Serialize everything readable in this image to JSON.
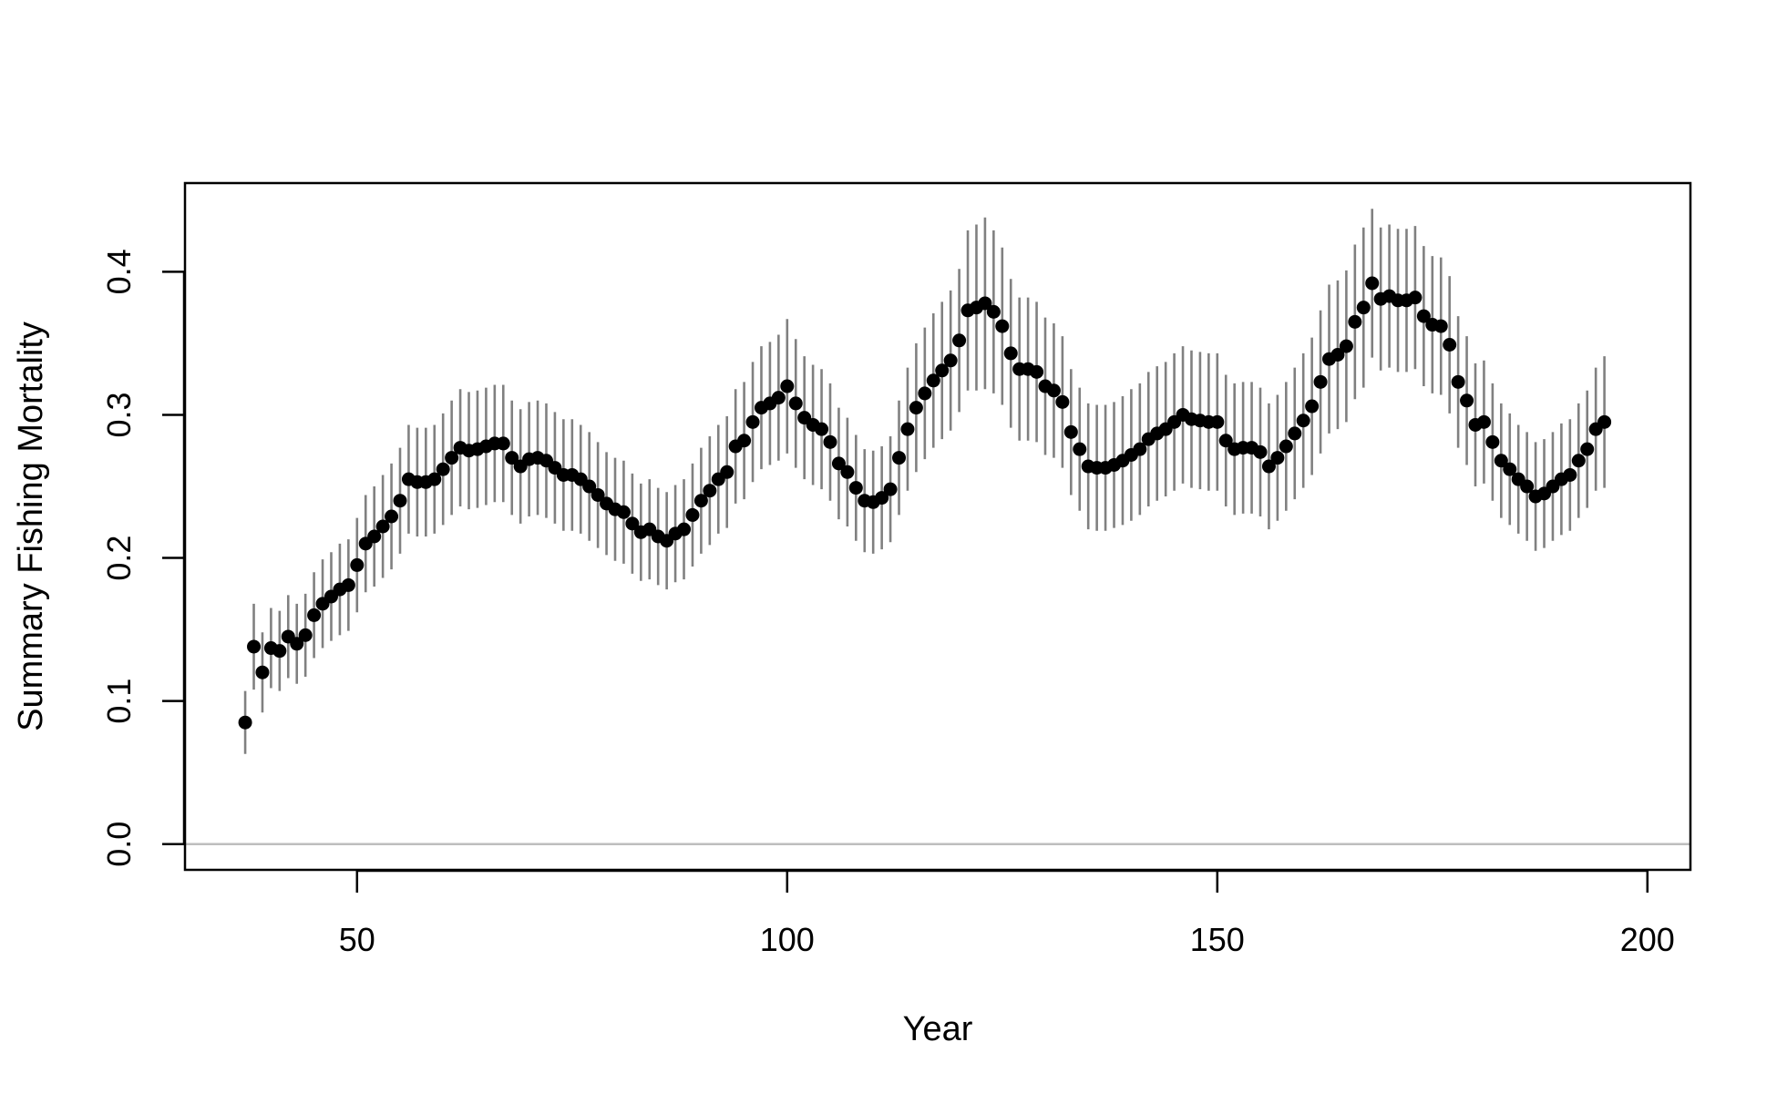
{
  "chart_data": {
    "type": "scatter",
    "title": "",
    "xlabel": "Year",
    "ylabel": "Summary Fishing Mortality",
    "xlim": [
      30,
      205
    ],
    "ylim": [
      -0.018,
      0.462
    ],
    "xticks": [
      50,
      100,
      150,
      200
    ],
    "yticks": [
      0.0,
      0.1,
      0.2,
      0.3,
      0.4
    ],
    "xtick_labels": [
      "50",
      "100",
      "150",
      "200"
    ],
    "ytick_labels": [
      "0.0",
      "0.1",
      "0.2",
      "0.3",
      "0.4"
    ],
    "reference_line": {
      "y": 0.0,
      "color": "#bebebe"
    },
    "grid": false,
    "legend": "none",
    "point_color": "#000000",
    "interval_color": "#808080",
    "x_start": 37,
    "y": [
      0.085,
      0.138,
      0.12,
      0.137,
      0.135,
      0.145,
      0.14,
      0.146,
      0.16,
      0.168,
      0.173,
      0.178,
      0.181,
      0.195,
      0.21,
      0.215,
      0.222,
      0.229,
      0.24,
      0.255,
      0.253,
      0.253,
      0.255,
      0.262,
      0.27,
      0.277,
      0.275,
      0.276,
      0.278,
      0.28,
      0.28,
      0.27,
      0.264,
      0.269,
      0.27,
      0.268,
      0.263,
      0.258,
      0.258,
      0.255,
      0.25,
      0.244,
      0.238,
      0.234,
      0.232,
      0.224,
      0.218,
      0.22,
      0.215,
      0.212,
      0.217,
      0.22,
      0.23,
      0.24,
      0.247,
      0.255,
      0.26,
      0.278,
      0.282,
      0.295,
      0.305,
      0.308,
      0.312,
      0.32,
      0.308,
      0.298,
      0.293,
      0.29,
      0.281,
      0.266,
      0.26,
      0.249,
      0.24,
      0.239,
      0.242,
      0.248,
      0.27,
      0.29,
      0.305,
      0.315,
      0.324,
      0.331,
      0.338,
      0.352,
      0.373,
      0.375,
      0.378,
      0.372,
      0.362,
      0.343,
      0.332,
      0.332,
      0.33,
      0.32,
      0.317,
      0.309,
      0.288,
      0.276,
      0.264,
      0.263,
      0.263,
      0.265,
      0.268,
      0.272,
      0.276,
      0.283,
      0.287,
      0.29,
      0.295,
      0.3,
      0.297,
      0.296,
      0.295,
      0.295,
      0.282,
      0.276,
      0.277,
      0.277,
      0.274,
      0.264,
      0.27,
      0.278,
      0.287,
      0.296,
      0.306,
      0.323,
      0.339,
      0.342,
      0.348,
      0.365,
      0.375,
      0.392,
      0.381,
      0.383,
      0.38,
      0.38,
      0.382,
      0.369,
      0.363,
      0.362,
      0.349,
      0.323,
      0.31,
      0.293,
      0.295,
      0.281,
      0.268,
      0.262,
      0.255,
      0.25,
      0.243,
      0.245,
      0.25,
      0.255,
      0.258,
      0.268,
      0.276,
      0.29,
      0.295
    ],
    "ci_half_width": [
      0.022,
      0.03,
      0.028,
      0.028,
      0.028,
      0.029,
      0.028,
      0.029,
      0.03,
      0.031,
      0.031,
      0.032,
      0.032,
      0.033,
      0.034,
      0.035,
      0.036,
      0.037,
      0.037,
      0.038,
      0.038,
      0.038,
      0.038,
      0.039,
      0.04,
      0.041,
      0.041,
      0.041,
      0.041,
      0.041,
      0.041,
      0.04,
      0.04,
      0.04,
      0.04,
      0.04,
      0.039,
      0.039,
      0.039,
      0.038,
      0.038,
      0.037,
      0.036,
      0.036,
      0.036,
      0.035,
      0.034,
      0.035,
      0.034,
      0.034,
      0.034,
      0.035,
      0.036,
      0.037,
      0.038,
      0.038,
      0.039,
      0.04,
      0.041,
      0.042,
      0.043,
      0.043,
      0.044,
      0.047,
      0.045,
      0.043,
      0.042,
      0.042,
      0.041,
      0.039,
      0.038,
      0.037,
      0.036,
      0.036,
      0.036,
      0.037,
      0.04,
      0.043,
      0.045,
      0.046,
      0.047,
      0.048,
      0.049,
      0.05,
      0.056,
      0.058,
      0.06,
      0.057,
      0.055,
      0.052,
      0.05,
      0.05,
      0.049,
      0.048,
      0.047,
      0.046,
      0.044,
      0.043,
      0.044,
      0.044,
      0.044,
      0.044,
      0.045,
      0.046,
      0.046,
      0.047,
      0.047,
      0.047,
      0.048,
      0.048,
      0.048,
      0.048,
      0.048,
      0.048,
      0.046,
      0.046,
      0.046,
      0.046,
      0.045,
      0.044,
      0.044,
      0.045,
      0.046,
      0.047,
      0.048,
      0.05,
      0.052,
      0.052,
      0.053,
      0.054,
      0.056,
      0.052,
      0.05,
      0.05,
      0.05,
      0.05,
      0.05,
      0.049,
      0.048,
      0.048,
      0.048,
      0.046,
      0.045,
      0.043,
      0.043,
      0.041,
      0.04,
      0.039,
      0.038,
      0.038,
      0.038,
      0.038,
      0.038,
      0.039,
      0.039,
      0.04,
      0.041,
      0.043,
      0.046
    ]
  }
}
